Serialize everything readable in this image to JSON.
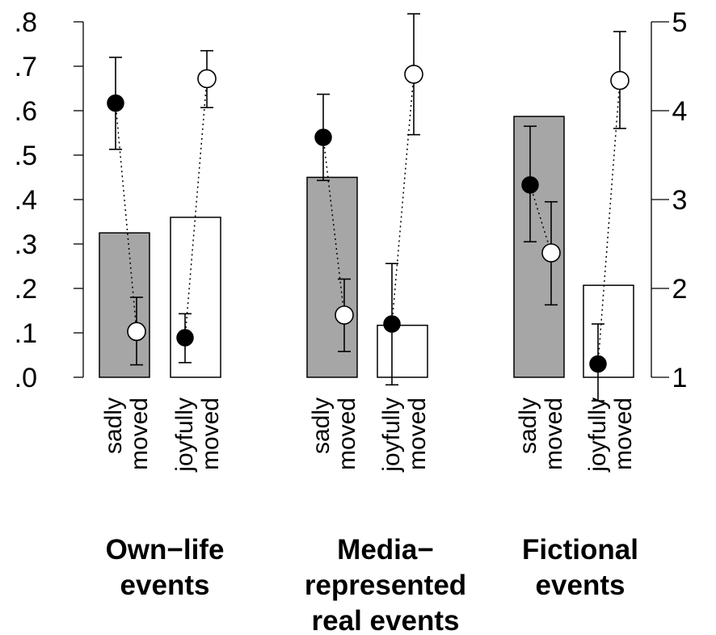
{
  "chart_data": {
    "type": "bar",
    "left_axis": {
      "ylim": [
        0,
        0.8
      ],
      "ticks": [
        0,
        0.1,
        0.2,
        0.3,
        0.4,
        0.5,
        0.6,
        0.7,
        0.8
      ],
      "tick_labels": [
        ".0",
        ".1",
        ".2",
        ".3",
        ".4",
        ".5",
        ".6",
        ".7",
        ".8"
      ]
    },
    "right_axis": {
      "ylim": [
        1,
        5
      ],
      "ticks": [
        1,
        2,
        3,
        4,
        5
      ],
      "tick_labels": [
        "1",
        "2",
        "3",
        "4",
        "5"
      ]
    },
    "groups": [
      {
        "label_lines": [
          "Own−life",
          "events"
        ],
        "categories": [
          {
            "label_lines": [
              "sadly",
              "moved"
            ],
            "bar_value": 0.325,
            "bar_color": "#a6a6a6",
            "filled_point": {
              "value": 0.617,
              "ci": [
                0.513,
                0.72
              ]
            },
            "open_point": {
              "value": 0.103,
              "ci": [
                0.028,
                0.18
              ]
            }
          },
          {
            "label_lines": [
              "joyfully",
              "moved"
            ],
            "bar_value": 0.36,
            "bar_color": "#ffffff",
            "filled_point": {
              "value": 0.089,
              "ci": [
                0.033,
                0.143
              ]
            },
            "open_point": {
              "value": 0.672,
              "ci": [
                0.607,
                0.735
              ]
            }
          }
        ]
      },
      {
        "label_lines": [
          "Media−",
          "represented",
          "real events"
        ],
        "categories": [
          {
            "label_lines": [
              "sadly",
              "moved"
            ],
            "bar_value": 0.45,
            "bar_color": "#a6a6a6",
            "filled_point": {
              "value": 0.54,
              "ci": [
                0.443,
                0.637
              ]
            },
            "open_point": {
              "value": 0.14,
              "ci": [
                0.058,
                0.221
              ]
            }
          },
          {
            "label_lines": [
              "joyfully",
              "moved"
            ],
            "bar_value": 0.117,
            "bar_color": "#ffffff",
            "filled_point": {
              "value": 0.12,
              "ci": [
                -0.017,
                0.256
              ]
            },
            "open_point": {
              "value": 0.682,
              "ci": [
                0.546,
                0.818
              ]
            }
          }
        ]
      },
      {
        "label_lines": [
          "Fictional",
          "events"
        ],
        "categories": [
          {
            "label_lines": [
              "sadly",
              "moved"
            ],
            "bar_value": 0.587,
            "bar_color": "#a6a6a6",
            "filled_point": {
              "value": 0.433,
              "ci": [
                0.305,
                0.565
              ]
            },
            "open_point": {
              "value": 0.28,
              "ci": [
                0.163,
                0.395
              ]
            }
          },
          {
            "label_lines": [
              "joyfully",
              "moved"
            ],
            "bar_value": 0.207,
            "bar_color": "#ffffff",
            "filled_point": {
              "value": 0.03,
              "ci": [
                -0.053,
                0.12
              ]
            },
            "open_point": {
              "value": 0.668,
              "ci": [
                0.56,
                0.778
              ]
            }
          }
        ]
      }
    ]
  }
}
